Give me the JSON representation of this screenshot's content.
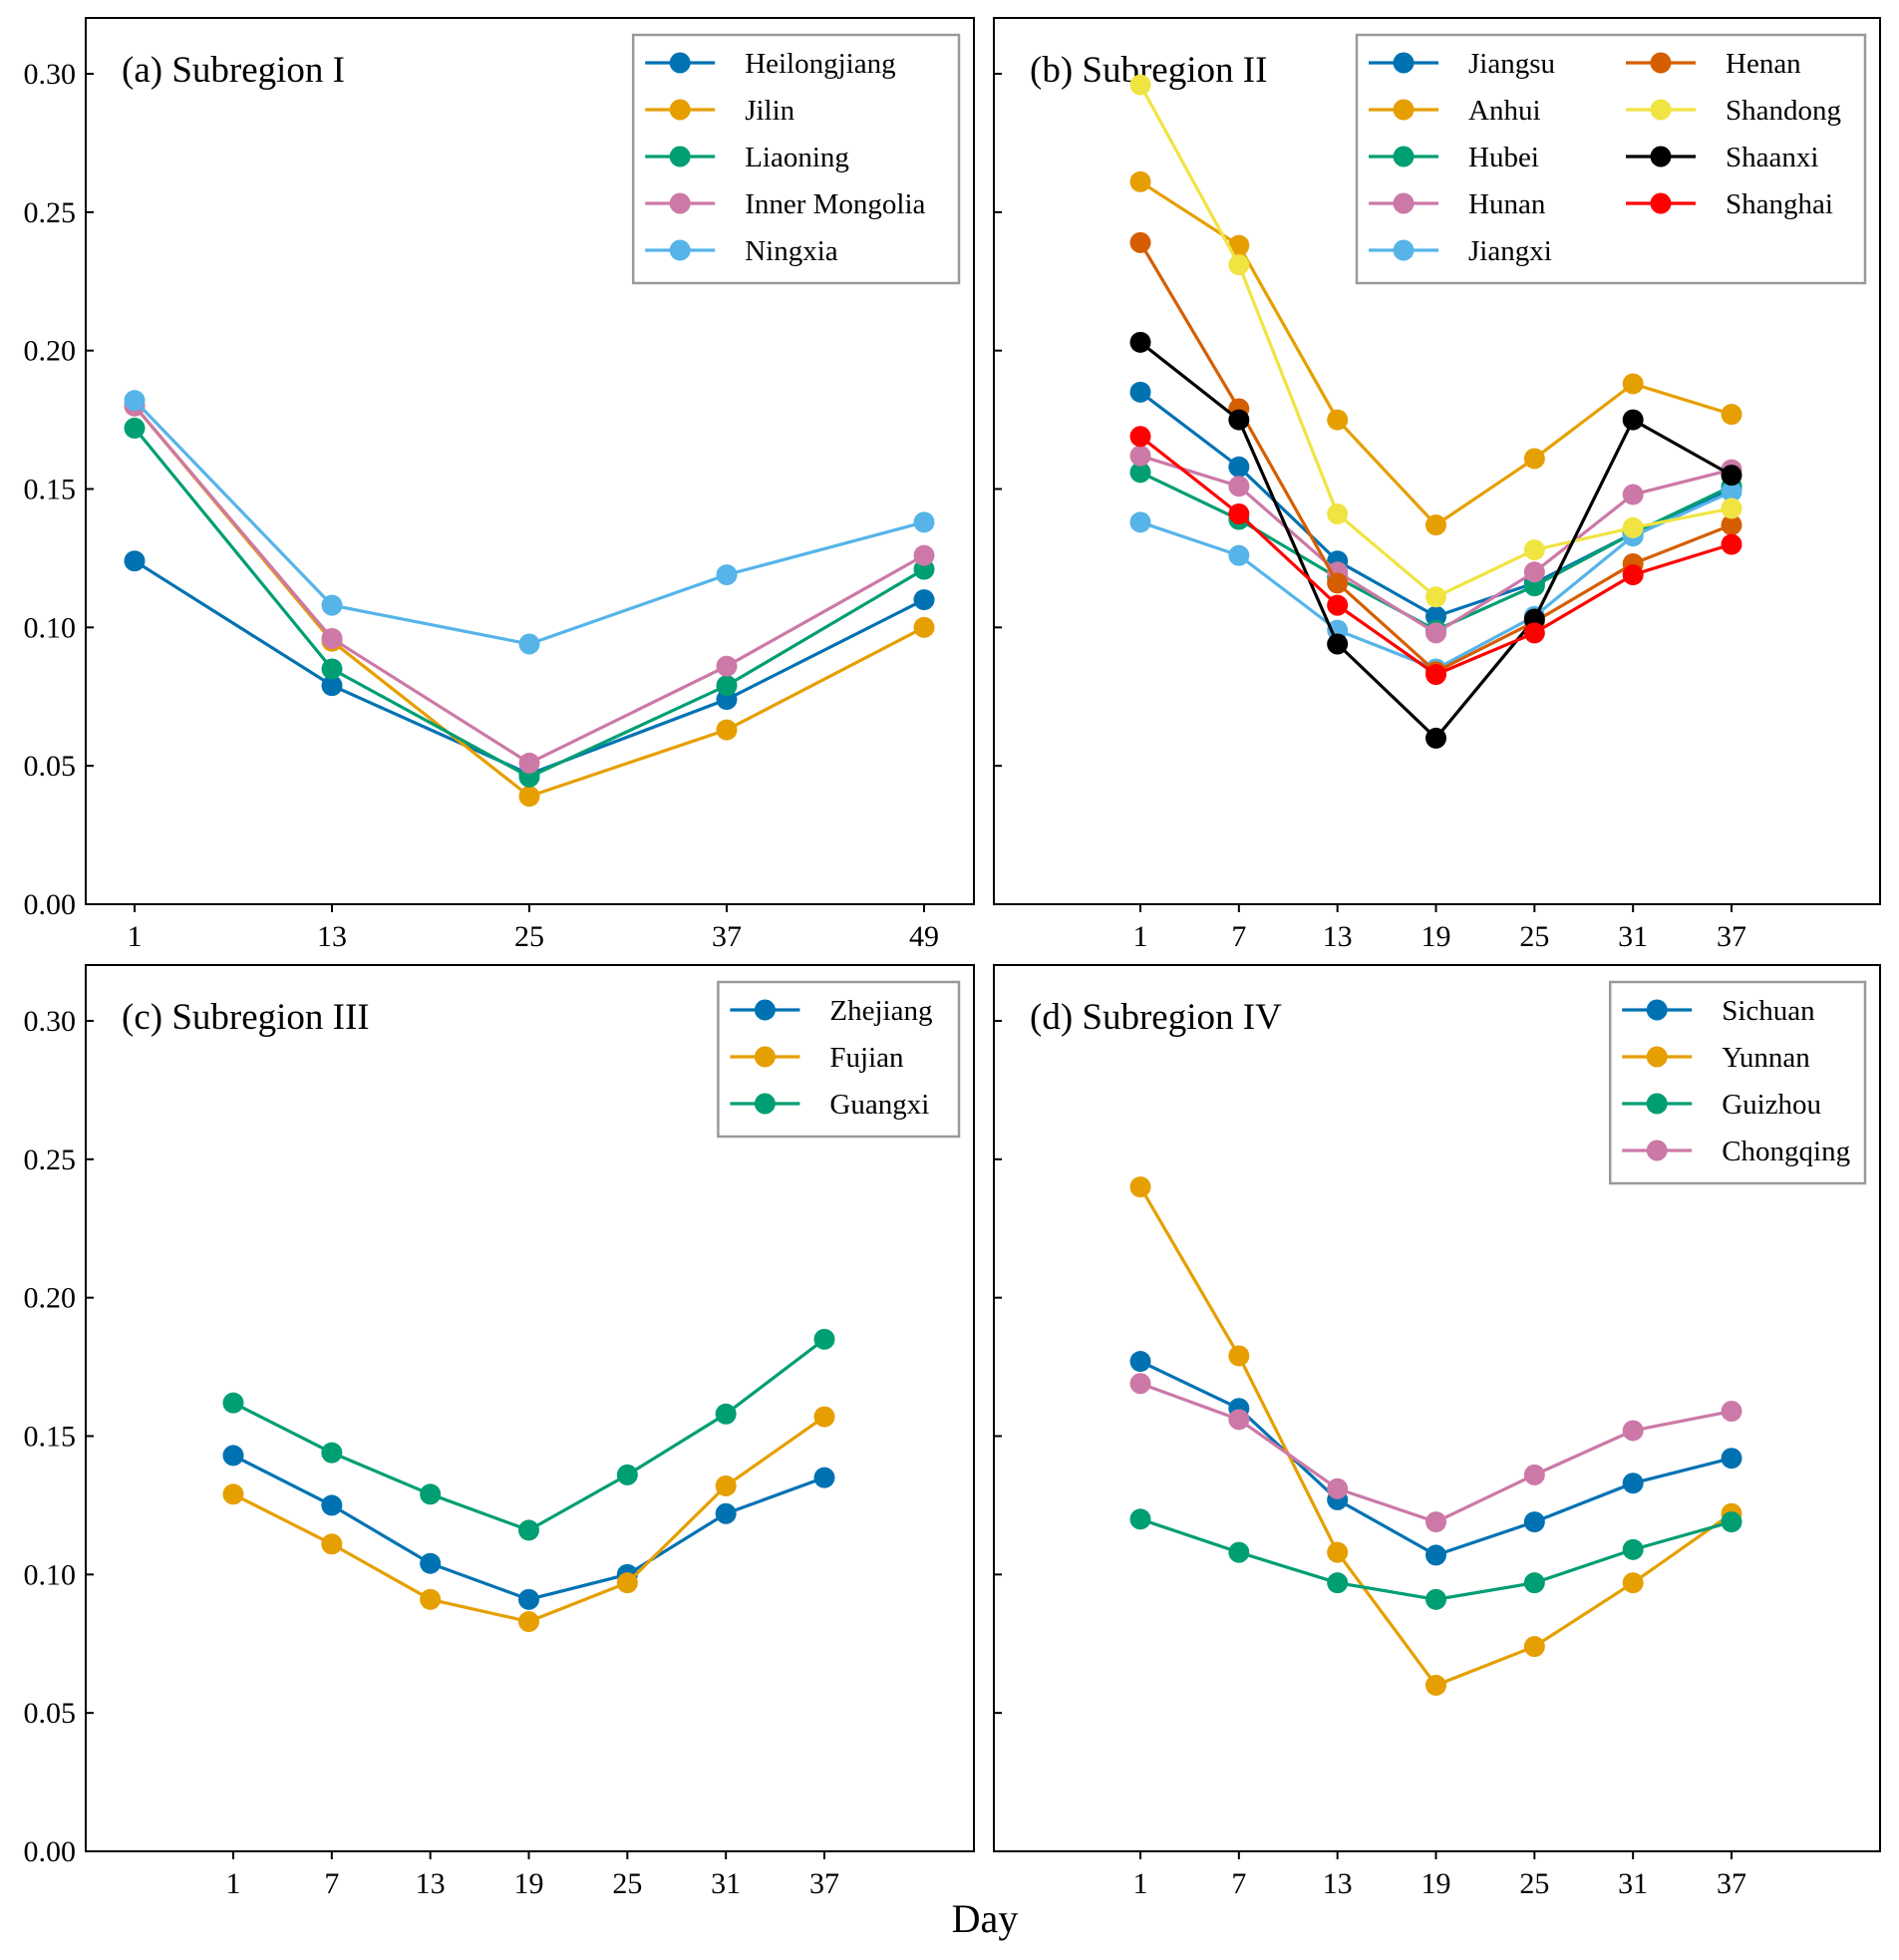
{
  "chart_data": {
    "type": "line",
    "xlabel": "Day",
    "ylabel": "",
    "ylim": [
      0,
      0.32
    ],
    "yticks": [
      "0.00",
      "0.05",
      "0.10",
      "0.15",
      "0.20",
      "0.25",
      "0.30"
    ],
    "grid": false,
    "panels": [
      {
        "id": "a",
        "title": "(a) Subregion I",
        "x": [
          1,
          13,
          25,
          37,
          49
        ],
        "xticks": [
          "1",
          "13",
          "25",
          "37",
          "49"
        ],
        "show_yticklabels": true,
        "legend": {
          "placement": "top-right",
          "columns": 1
        },
        "series": [
          {
            "name": "Heilongjiang",
            "color": "#0072B2",
            "values": [
              0.124,
              0.079,
              0.047,
              0.074,
              0.11
            ]
          },
          {
            "name": "Jilin",
            "color": "#E69F00",
            "values": [
              0.18,
              0.095,
              0.039,
              0.063,
              0.1
            ]
          },
          {
            "name": "Liaoning",
            "color": "#009E73",
            "values": [
              0.172,
              0.085,
              0.046,
              0.079,
              0.121
            ]
          },
          {
            "name": "Inner Mongolia",
            "color": "#CC79A7",
            "values": [
              0.18,
              0.096,
              0.051,
              0.086,
              0.126
            ]
          },
          {
            "name": "Ningxia",
            "color": "#56B4E9",
            "values": [
              0.182,
              0.108,
              0.094,
              0.119,
              0.138
            ]
          }
        ]
      },
      {
        "id": "b",
        "title": "(b) Subregion II",
        "x": [
          1,
          7,
          13,
          19,
          25,
          31,
          37
        ],
        "xticks": [
          "1",
          "7",
          "13",
          "19",
          "25",
          "31",
          "37"
        ],
        "show_yticklabels": false,
        "legend": {
          "placement": "top-right",
          "columns": 2
        },
        "series": [
          {
            "name": "Jiangsu",
            "color": "#0072B2",
            "values": [
              0.185,
              0.158,
              0.124,
              0.104,
              0.116,
              0.134,
              0.15
            ]
          },
          {
            "name": "Anhui",
            "color": "#E69F00",
            "values": [
              0.261,
              0.238,
              0.175,
              0.137,
              0.161,
              0.188,
              0.177
            ]
          },
          {
            "name": "Hubei",
            "color": "#009E73",
            "values": [
              0.156,
              0.139,
              0.118,
              0.099,
              0.115,
              0.134,
              0.151
            ]
          },
          {
            "name": "Hunan",
            "color": "#CC79A7",
            "values": [
              0.162,
              0.151,
              0.12,
              0.098,
              0.12,
              0.148,
              0.157
            ]
          },
          {
            "name": "Jiangxi",
            "color": "#56B4E9",
            "values": [
              0.138,
              0.126,
              0.099,
              0.085,
              0.104,
              0.133,
              0.149
            ]
          },
          {
            "name": "Henan",
            "color": "#D55E00",
            "values": [
              0.239,
              0.179,
              0.116,
              0.084,
              0.102,
              0.123,
              0.137
            ]
          },
          {
            "name": "Shandong",
            "color": "#F0E442",
            "values": [
              0.296,
              0.231,
              0.141,
              0.111,
              0.128,
              0.136,
              0.143
            ]
          },
          {
            "name": "Shaanxi",
            "color": "#000000",
            "values": [
              0.203,
              0.175,
              0.094,
              0.06,
              0.103,
              0.175,
              0.155
            ]
          },
          {
            "name": "Shanghai",
            "color": "#FF0000",
            "values": [
              0.169,
              0.141,
              0.108,
              0.083,
              0.098,
              0.119,
              0.13
            ]
          }
        ]
      },
      {
        "id": "c",
        "title": "(c) Subregion III",
        "x": [
          1,
          7,
          13,
          19,
          25,
          31,
          37
        ],
        "xticks": [
          "1",
          "7",
          "13",
          "19",
          "25",
          "31",
          "37"
        ],
        "show_yticklabels": true,
        "legend": {
          "placement": "top-right",
          "columns": 1
        },
        "series": [
          {
            "name": "Zhejiang",
            "color": "#0072B2",
            "values": [
              0.143,
              0.125,
              0.104,
              0.091,
              0.1,
              0.122,
              0.135
            ]
          },
          {
            "name": "Fujian",
            "color": "#E69F00",
            "values": [
              0.129,
              0.111,
              0.091,
              0.083,
              0.097,
              0.132,
              0.157
            ]
          },
          {
            "name": "Guangxi",
            "color": "#009E73",
            "values": [
              0.162,
              0.144,
              0.129,
              0.116,
              0.136,
              0.158,
              0.185
            ]
          }
        ]
      },
      {
        "id": "d",
        "title": "(d) Subregion IV",
        "x": [
          1,
          7,
          13,
          19,
          25,
          31,
          37
        ],
        "xticks": [
          "1",
          "7",
          "13",
          "19",
          "25",
          "31",
          "37"
        ],
        "show_yticklabels": false,
        "legend": {
          "placement": "top-right",
          "columns": 1
        },
        "series": [
          {
            "name": "Sichuan",
            "color": "#0072B2",
            "values": [
              0.177,
              0.16,
              0.127,
              0.107,
              0.119,
              0.133,
              0.142
            ]
          },
          {
            "name": "Yunnan",
            "color": "#E69F00",
            "values": [
              0.24,
              0.179,
              0.108,
              0.06,
              0.074,
              0.097,
              0.122
            ]
          },
          {
            "name": "Guizhou",
            "color": "#009E73",
            "values": [
              0.12,
              0.108,
              0.097,
              0.091,
              0.097,
              0.109,
              0.119
            ]
          },
          {
            "name": "Chongqing",
            "color": "#CC79A7",
            "values": [
              0.169,
              0.156,
              0.131,
              0.119,
              0.136,
              0.152,
              0.159
            ]
          }
        ]
      }
    ]
  }
}
